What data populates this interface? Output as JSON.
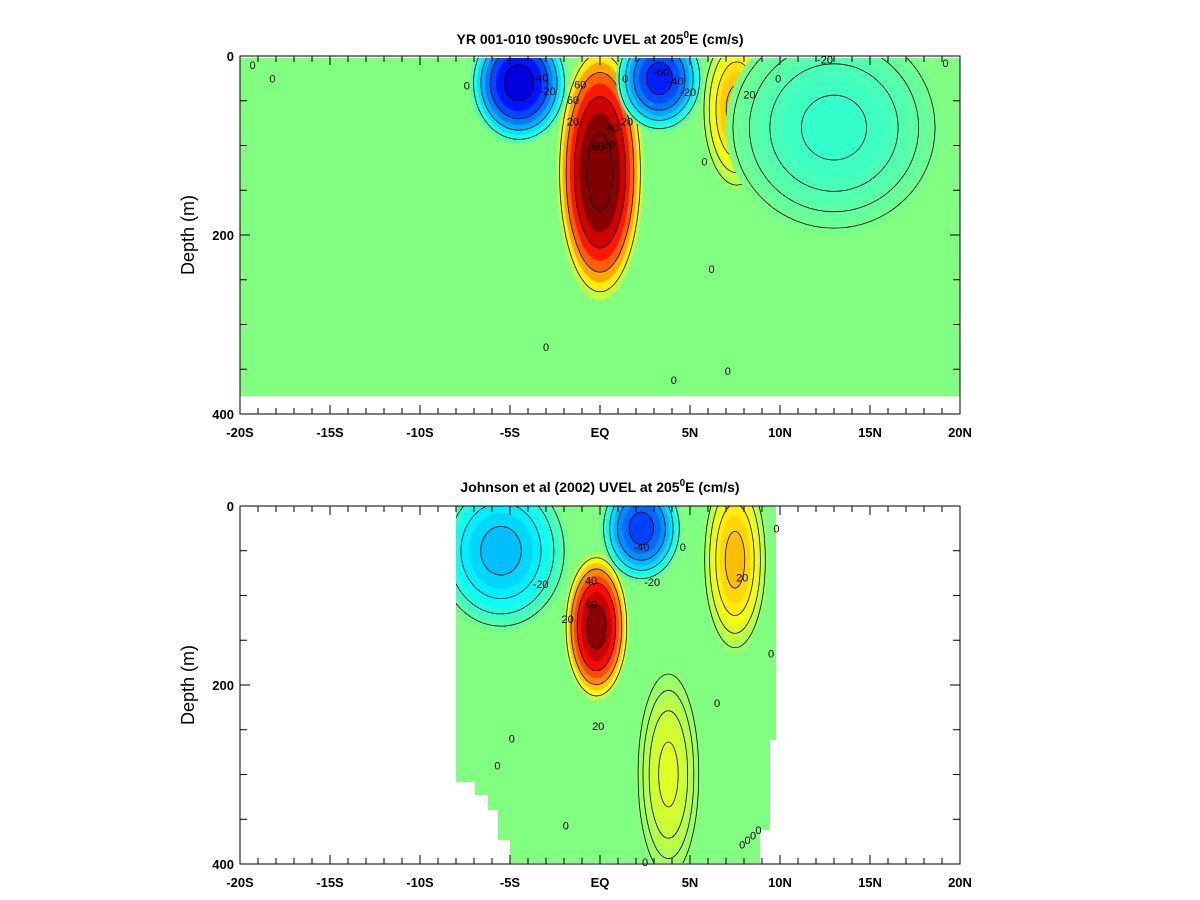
{
  "chart_data": [
    {
      "type": "heatmap",
      "title": "YR 001-010 t90s90cfc UVEL at 205",
      "title_superscript": "0",
      "title_suffix": "E (cm/s)",
      "ylabel": "Depth (m)",
      "xlabel": "",
      "x_range": [
        -20,
        20
      ],
      "y_range": [
        0,
        400
      ],
      "y_inverted": true,
      "x_ticks": [
        -20,
        -15,
        -10,
        -5,
        0,
        5,
        10,
        15,
        20
      ],
      "x_tick_labels": [
        "-20S",
        "-15S",
        "-10S",
        "-5S",
        "EQ",
        "5N",
        "10N",
        "15N",
        "20N"
      ],
      "y_ticks": [
        0,
        200,
        400
      ],
      "y_tick_labels": [
        "0",
        "200",
        "400"
      ],
      "data_extent": {
        "lat": [
          -20,
          20
        ],
        "depth": [
          0,
          380
        ]
      },
      "colorscale": "jet",
      "value_range": [
        -80,
        80
      ],
      "features": [
        {
          "lat": 0,
          "depth": 130,
          "peak": 90,
          "width_lat": 1.6,
          "width_depth": 95
        },
        {
          "lat": -4.5,
          "depth": 30,
          "peak": -65,
          "width_lat": 1.8,
          "width_depth": 45
        },
        {
          "lat": 3.3,
          "depth": 25,
          "peak": -55,
          "width_lat": 1.6,
          "width_depth": 40
        },
        {
          "lat": 7.6,
          "depth": 60,
          "peak": 32,
          "width_lat": 1.3,
          "width_depth": 60
        },
        {
          "lat": 13,
          "depth": 80,
          "peak": -12,
          "width_lat": 4,
          "width_depth": 80
        }
      ],
      "contour_labels": [
        {
          "text": "0",
          "lat": -19.3,
          "depth": 10
        },
        {
          "text": "0",
          "lat": -18.2,
          "depth": 25
        },
        {
          "text": "0",
          "lat": -7.4,
          "depth": 33
        },
        {
          "text": "-40",
          "lat": -3.3,
          "depth": 24
        },
        {
          "text": "-20",
          "lat": -2.9,
          "depth": 39
        },
        {
          "text": "60",
          "lat": -1.1,
          "depth": 32
        },
        {
          "text": "60",
          "lat": -1.5,
          "depth": 49
        },
        {
          "text": "20",
          "lat": -1.5,
          "depth": 73
        },
        {
          "text": "40",
          "lat": 0.7,
          "depth": 80
        },
        {
          "text": "20",
          "lat": 1.5,
          "depth": 73
        },
        {
          "text": "20",
          "lat": 0.5,
          "depth": 99
        },
        {
          "text": "60",
          "lat": -0.1,
          "depth": 101
        },
        {
          "text": "0",
          "lat": 1.4,
          "depth": 25
        },
        {
          "text": "-60",
          "lat": 3.4,
          "depth": 18
        },
        {
          "text": "-40",
          "lat": 4.2,
          "depth": 28
        },
        {
          "text": "-20",
          "lat": 4.9,
          "depth": 40
        },
        {
          "text": "-20",
          "lat": 12.5,
          "depth": 4
        },
        {
          "text": "0",
          "lat": 19.2,
          "depth": 8
        },
        {
          "text": "0",
          "lat": 9.9,
          "depth": 25
        },
        {
          "text": "20",
          "lat": 8.3,
          "depth": 43
        },
        {
          "text": "0",
          "lat": 5.8,
          "depth": 118
        },
        {
          "text": "0",
          "lat": 6.2,
          "depth": 238
        },
        {
          "text": "0",
          "lat": -3.0,
          "depth": 325
        },
        {
          "text": "0",
          "lat": 4.1,
          "depth": 362
        },
        {
          "text": "0",
          "lat": 7.1,
          "depth": 352
        }
      ]
    },
    {
      "type": "heatmap",
      "title": "Johnson et al (2002) UVEL at 205",
      "title_superscript": "0",
      "title_suffix": "E (cm/s)",
      "ylabel": "Depth (m)",
      "xlabel": "",
      "x_range": [
        -20,
        20
      ],
      "y_range": [
        0,
        400
      ],
      "y_inverted": true,
      "x_ticks": [
        -20,
        -15,
        -10,
        -5,
        0,
        5,
        10,
        15,
        20
      ],
      "x_tick_labels": [
        "-20S",
        "-15S",
        "-10S",
        "-5S",
        "EQ",
        "5N",
        "10N",
        "15N",
        "20N"
      ],
      "y_ticks": [
        0,
        200,
        400
      ],
      "y_tick_labels": [
        "0",
        "200",
        "400"
      ],
      "data_extent": {
        "lat": [
          -8,
          9.8
        ],
        "depth": [
          0,
          400
        ]
      },
      "colorscale": "jet",
      "value_range": [
        -80,
        80
      ],
      "features": [
        {
          "lat": -0.2,
          "depth": 135,
          "peak": 78,
          "width_lat": 1.2,
          "width_depth": 55
        },
        {
          "lat": 2.3,
          "depth": 25,
          "peak": -50,
          "width_lat": 1.5,
          "width_depth": 40
        },
        {
          "lat": 7.5,
          "depth": 60,
          "peak": 30,
          "width_lat": 1.2,
          "width_depth": 70
        },
        {
          "lat": -5.5,
          "depth": 50,
          "peak": -30,
          "width_lat": 2.5,
          "width_depth": 60
        },
        {
          "lat": 3.8,
          "depth": 300,
          "peak": 15,
          "width_lat": 1.2,
          "width_depth": 80
        }
      ],
      "contour_labels": [
        {
          "text": "-40",
          "lat": 2.3,
          "depth": 46
        },
        {
          "text": "0",
          "lat": 4.6,
          "depth": 46
        },
        {
          "text": "-20",
          "lat": -3.3,
          "depth": 87
        },
        {
          "text": "-20",
          "lat": 2.9,
          "depth": 85
        },
        {
          "text": "40",
          "lat": -0.5,
          "depth": 83
        },
        {
          "text": "60",
          "lat": -0.5,
          "depth": 110
        },
        {
          "text": "20",
          "lat": -1.8,
          "depth": 126
        },
        {
          "text": "0",
          "lat": 9.8,
          "depth": 25
        },
        {
          "text": "20",
          "lat": 7.9,
          "depth": 80
        },
        {
          "text": "0",
          "lat": 9.5,
          "depth": 165
        },
        {
          "text": "0",
          "lat": 6.5,
          "depth": 220
        },
        {
          "text": "20",
          "lat": -0.1,
          "depth": 246
        },
        {
          "text": "0",
          "lat": -4.9,
          "depth": 260
        },
        {
          "text": "0",
          "lat": -5.7,
          "depth": 290
        },
        {
          "text": "0",
          "lat": -1.9,
          "depth": 357
        },
        {
          "text": "0",
          "lat": 2.5,
          "depth": 398
        },
        {
          "text": "0",
          "lat": 8.8,
          "depth": 362
        },
        {
          "text": "0",
          "lat": 8.5,
          "depth": 368
        },
        {
          "text": "0",
          "lat": 8.2,
          "depth": 373
        },
        {
          "text": "0",
          "lat": 7.9,
          "depth": 378
        }
      ]
    }
  ]
}
